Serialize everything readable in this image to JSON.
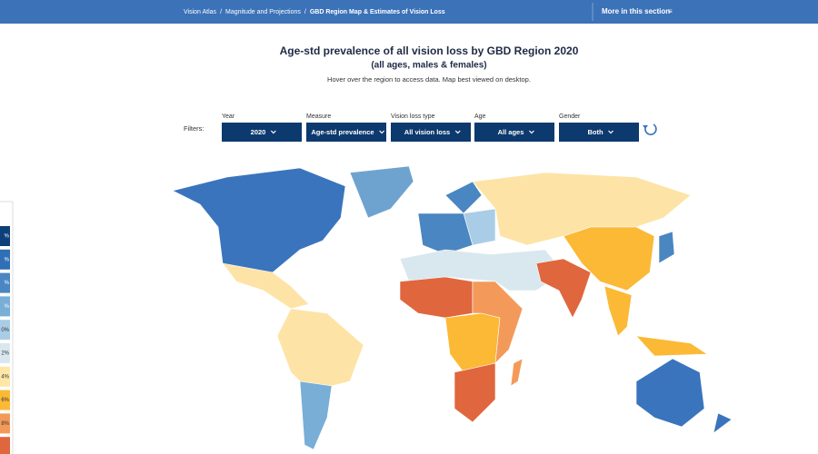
{
  "nav": {
    "breadcrumbs": [
      "Vision Atlas",
      "Magnitude and Projections",
      "GBD Region Map & Estimates of Vision Loss"
    ],
    "separator": "/",
    "section_menu": "More in this section"
  },
  "header": {
    "title": "Age-std prevalence of all vision loss by GBD Region 2020",
    "subtitle": "(all ages, males & females)",
    "note": "Hover over the region to access data. Map best viewed on desktop."
  },
  "filters": {
    "label": "Filters:",
    "items": [
      {
        "label": "Year",
        "value": "2020"
      },
      {
        "label": "Measure",
        "value": "Age-std prevalence"
      },
      {
        "label": "Vision loss type",
        "value": "All vision loss"
      },
      {
        "label": "Age",
        "value": "All ages"
      },
      {
        "label": "Gender",
        "value": "Both"
      }
    ]
  },
  "legend": {
    "items": [
      "%",
      "%",
      "%",
      "%",
      "0%",
      "2%",
      "4%",
      "6%",
      "8%",
      ""
    ]
  }
}
